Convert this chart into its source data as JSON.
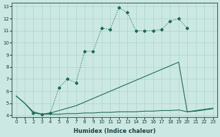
{
  "xlabel": "Humidex (Indice chaleur)",
  "bg_color": "#cce8e2",
  "grid_color": "#aad4cc",
  "line_color": "#1a6b58",
  "xlim": [
    -0.5,
    23.5
  ],
  "ylim": [
    3.85,
    13.3
  ],
  "xticks": [
    0,
    1,
    2,
    3,
    4,
    5,
    6,
    7,
    8,
    9,
    10,
    11,
    12,
    13,
    14,
    15,
    16,
    17,
    18,
    19,
    20,
    21,
    22,
    23
  ],
  "yticks": [
    4,
    5,
    6,
    7,
    8,
    9,
    10,
    11,
    12,
    13
  ],
  "line_dotted_markers": {
    "x": [
      2,
      3,
      4,
      5,
      6,
      7,
      8,
      9,
      10,
      11,
      12,
      13,
      14,
      15,
      16,
      17,
      18,
      19,
      20
    ],
    "y": [
      4.2,
      4.1,
      4.2,
      6.3,
      7.0,
      6.7,
      9.3,
      9.3,
      11.2,
      11.1,
      12.9,
      12.5,
      11.0,
      11.0,
      11.0,
      11.1,
      11.8,
      12.0,
      11.2
    ]
  },
  "line_diagonal": {
    "x": [
      0,
      1,
      2,
      3,
      4,
      5,
      6,
      7,
      8,
      9,
      10,
      11,
      12,
      13,
      14,
      15,
      16,
      17,
      18,
      19,
      20,
      21,
      22,
      23
    ],
    "y": [
      5.6,
      5.0,
      4.3,
      4.1,
      4.2,
      4.4,
      4.6,
      4.8,
      5.1,
      5.4,
      5.7,
      6.0,
      6.3,
      6.6,
      6.9,
      7.2,
      7.5,
      7.8,
      8.1,
      8.4,
      4.3,
      4.4,
      4.5,
      4.6
    ]
  },
  "line_flat": {
    "x": [
      0,
      1,
      2,
      3,
      4,
      5,
      6,
      7,
      8,
      9,
      10,
      11,
      12,
      13,
      14,
      15,
      16,
      17,
      18,
      19,
      20,
      21,
      22,
      23
    ],
    "y": [
      5.6,
      5.0,
      4.2,
      4.1,
      4.1,
      4.1,
      4.15,
      4.15,
      4.2,
      4.2,
      4.25,
      4.25,
      4.3,
      4.3,
      4.3,
      4.35,
      4.35,
      4.4,
      4.4,
      4.45,
      4.3,
      4.35,
      4.45,
      4.55
    ]
  }
}
